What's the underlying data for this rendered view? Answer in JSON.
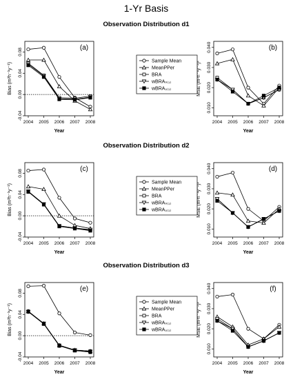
{
  "figure": {
    "title": "1-Yr Basis",
    "x_axis_label": "Year",
    "x_ticks": [
      "2004",
      "2005",
      "2006",
      "2007",
      "2008"
    ],
    "bias_ylabel": "Bias (m³h⁻¹y⁻¹)",
    "mse_ylabel": "MSE (m³h⁻¹y⁻¹)²",
    "bias_yticks": [
      "-0.04",
      "0.00",
      "0.04",
      "0.08"
    ],
    "mse_yticks": [
      "0.010",
      "0.020",
      "0.030",
      "0.040"
    ],
    "legend": [
      "Sample Mean",
      "MeanPPer",
      "BRA",
      "wBRAₙ₍₁₎",
      "wBRA₀₍₁₎"
    ]
  },
  "chart_data": [
    {
      "type": "line",
      "panel": "(a)",
      "group_title": "Observation Distribution d1",
      "xlabel": "Year",
      "ylabel": "Bias",
      "ylim": [
        -0.04,
        0.1
      ],
      "x": [
        2004,
        2005,
        2006,
        2007,
        2008
      ],
      "reference_line": 0,
      "series": [
        {
          "name": "Sample Mean",
          "marker": "circle",
          "values": [
            0.085,
            0.088,
            0.033,
            -0.006,
            -0.023
          ]
        },
        {
          "name": "MeanPPer",
          "marker": "triangle-up",
          "values": [
            0.065,
            0.065,
            0.015,
            -0.012,
            -0.028
          ]
        },
        {
          "name": "BRA",
          "marker": "square",
          "values": [
            0.059,
            0.036,
            -0.006,
            -0.007,
            -0.003
          ]
        },
        {
          "name": "wBRAₙ₍₁₎",
          "marker": "triangle-down",
          "values": [
            0.057,
            0.035,
            -0.008,
            -0.009,
            -0.005
          ]
        },
        {
          "name": "wBRA₀₍₁₎",
          "marker": "filled-square",
          "values": [
            0.055,
            0.033,
            -0.009,
            -0.01,
            -0.006
          ]
        }
      ]
    },
    {
      "type": "line",
      "panel": "(b)",
      "group_title": "Observation Distribution d1",
      "xlabel": "Year",
      "ylabel": "MSE",
      "ylim": [
        0.006,
        0.043
      ],
      "x": [
        2004,
        2005,
        2006,
        2007,
        2008
      ],
      "series": [
        {
          "name": "Sample Mean",
          "marker": "circle",
          "values": [
            0.037,
            0.039,
            0.02,
            0.012,
            0.021
          ]
        },
        {
          "name": "MeanPPer",
          "marker": "triangle-up",
          "values": [
            0.032,
            0.034,
            0.016,
            0.011,
            0.02
          ]
        },
        {
          "name": "BRA",
          "marker": "square",
          "values": [
            0.025,
            0.019,
            0.012,
            0.015,
            0.019
          ]
        },
        {
          "name": "wBRAₙ₍₁₎",
          "marker": "triangle-down",
          "values": [
            0.024,
            0.019,
            0.012,
            0.015,
            0.019
          ]
        },
        {
          "name": "wBRA₀₍₁₎",
          "marker": "filled-square",
          "values": [
            0.024,
            0.018,
            0.012,
            0.016,
            0.02
          ]
        }
      ]
    },
    {
      "type": "line",
      "panel": "(c)",
      "group_title": "Observation Distribution d2",
      "xlabel": "Year",
      "ylabel": "Bias",
      "ylim": [
        -0.04,
        0.1
      ],
      "x": [
        2004,
        2005,
        2006,
        2007,
        2008
      ],
      "reference_line": 0,
      "series": [
        {
          "name": "Sample Mean",
          "marker": "circle",
          "values": [
            0.085,
            0.087,
            0.034,
            -0.005,
            -0.013
          ]
        },
        {
          "name": "MeanPPer",
          "marker": "triangle-up",
          "values": [
            0.055,
            0.05,
            0.0,
            -0.018,
            -0.024
          ]
        },
        {
          "name": "BRA",
          "marker": "square",
          "values": [
            0.046,
            0.022,
            -0.019,
            -0.023,
            -0.027
          ]
        },
        {
          "name": "wBRAₙ₍₁₎",
          "marker": "triangle-down",
          "values": [
            0.046,
            0.022,
            -0.019,
            -0.023,
            -0.026
          ]
        },
        {
          "name": "wBRA₀₍₁₎",
          "marker": "filled-square",
          "values": [
            0.045,
            0.021,
            -0.02,
            -0.024,
            -0.028
          ]
        }
      ]
    },
    {
      "type": "line",
      "panel": "(d)",
      "group_title": "Observation Distribution d2",
      "xlabel": "Year",
      "ylabel": "MSE",
      "ylim": [
        0.006,
        0.043
      ],
      "x": [
        2004,
        2005,
        2006,
        2007,
        2008
      ],
      "series": [
        {
          "name": "Sample Mean",
          "marker": "circle",
          "values": [
            0.036,
            0.038,
            0.02,
            0.014,
            0.021
          ]
        },
        {
          "name": "MeanPPer",
          "marker": "triangle-up",
          "values": [
            0.028,
            0.027,
            0.014,
            0.013,
            0.02
          ]
        },
        {
          "name": "BRA",
          "marker": "square",
          "values": [
            0.025,
            0.018,
            0.011,
            0.015,
            0.019
          ]
        },
        {
          "name": "wBRAₙ₍₁₎",
          "marker": "triangle-down",
          "values": [
            0.025,
            0.018,
            0.011,
            0.015,
            0.019
          ]
        },
        {
          "name": "wBRA₀₍₁₎",
          "marker": "filled-square",
          "values": [
            0.024,
            0.018,
            0.011,
            0.015,
            0.019
          ]
        }
      ]
    },
    {
      "type": "line",
      "panel": "(e)",
      "group_title": "Observation Distribution d3",
      "xlabel": "Year",
      "ylabel": "Bias",
      "ylim": [
        -0.04,
        0.1
      ],
      "x": [
        2004,
        2005,
        2006,
        2007,
        2008
      ],
      "reference_line": 0,
      "series": [
        {
          "name": "Sample Mean",
          "marker": "circle",
          "values": [
            0.093,
            0.094,
            0.042,
            0.006,
            0.001
          ]
        },
        {
          "name": "MeanPPer",
          "marker": "triangle-up",
          "values": [
            0.046,
            0.023,
            -0.018,
            -0.027,
            -0.029
          ]
        },
        {
          "name": "BRA",
          "marker": "square",
          "values": [
            0.046,
            0.023,
            -0.018,
            -0.027,
            -0.029
          ]
        },
        {
          "name": "wBRAₙ₍₁₎",
          "marker": "triangle-down",
          "values": [
            0.045,
            0.023,
            -0.019,
            -0.027,
            -0.03
          ]
        },
        {
          "name": "wBRA₀₍₁₎",
          "marker": "filled-square",
          "values": [
            0.045,
            0.022,
            -0.019,
            -0.028,
            -0.031
          ]
        }
      ]
    },
    {
      "type": "line",
      "panel": "(f)",
      "group_title": "Observation Distribution d3",
      "xlabel": "Year",
      "ylabel": "MSE",
      "ylim": [
        0.006,
        0.043
      ],
      "x": [
        2004,
        2005,
        2006,
        2007,
        2008
      ],
      "series": [
        {
          "name": "Sample Mean",
          "marker": "circle",
          "values": [
            0.036,
            0.037,
            0.02,
            0.015,
            0.022
          ]
        },
        {
          "name": "MeanPPer",
          "marker": "triangle-up",
          "values": [
            0.026,
            0.021,
            0.012,
            0.015,
            0.021
          ]
        },
        {
          "name": "BRA",
          "marker": "square",
          "values": [
            0.025,
            0.02,
            0.011,
            0.014,
            0.018
          ]
        },
        {
          "name": "wBRAₙ₍₁₎",
          "marker": "triangle-down",
          "values": [
            0.024,
            0.02,
            0.011,
            0.014,
            0.018
          ]
        },
        {
          "name": "wBRA₀₍₁₎",
          "marker": "filled-square",
          "values": [
            0.024,
            0.019,
            0.011,
            0.014,
            0.018
          ]
        }
      ]
    }
  ]
}
